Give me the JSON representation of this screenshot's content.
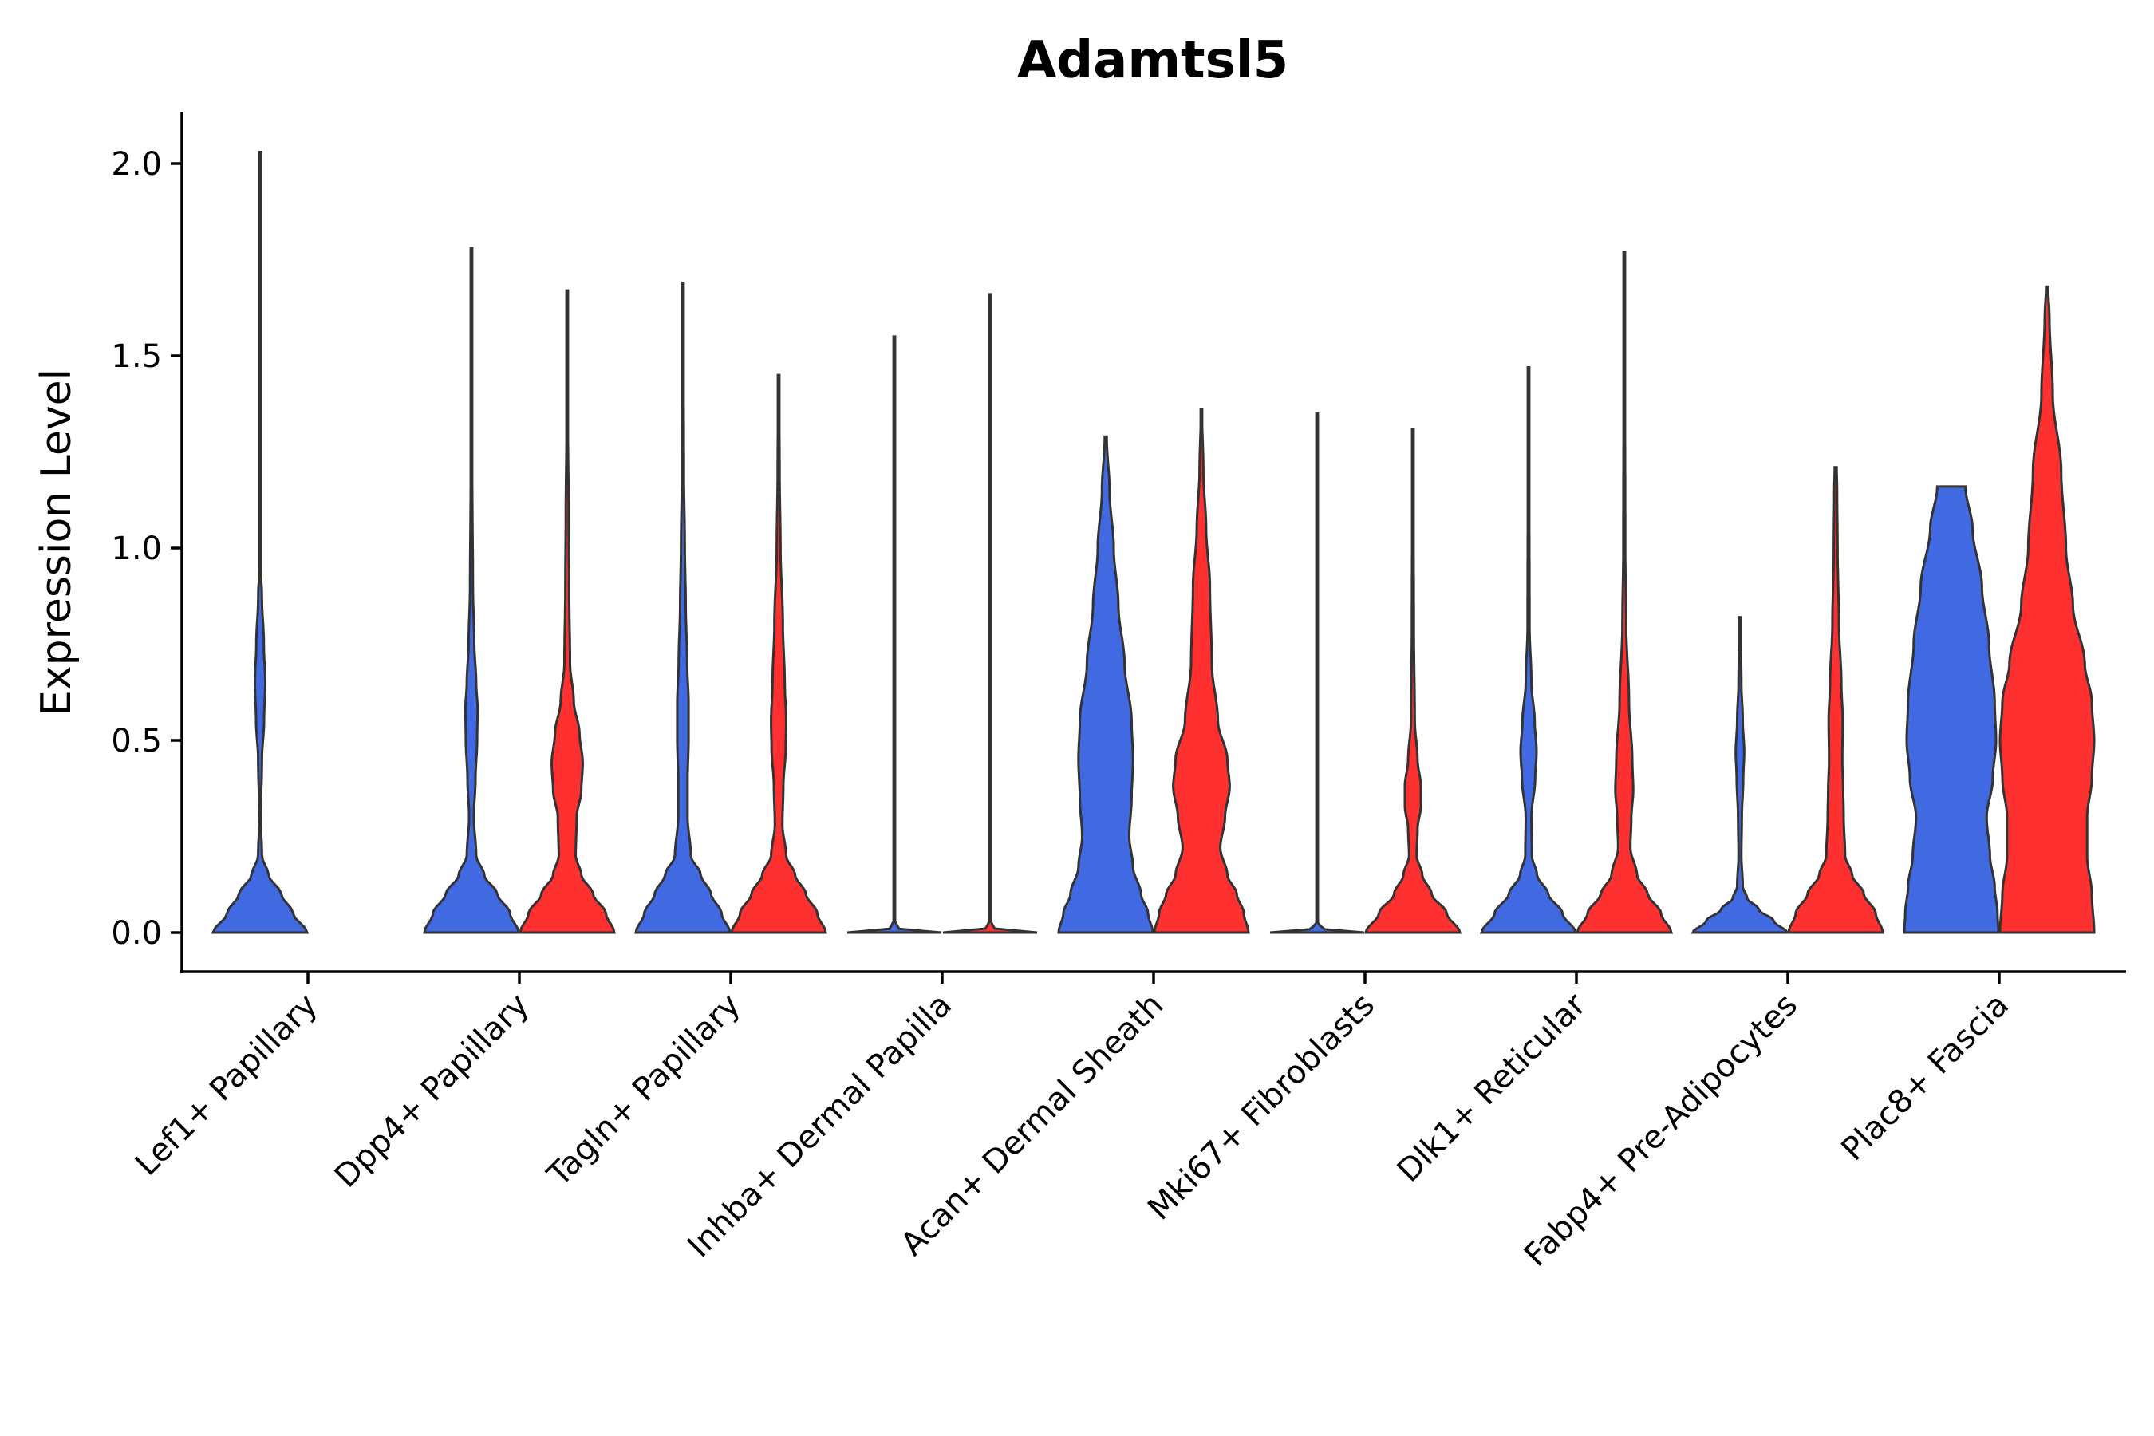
{
  "chart_data": {
    "type": "violin",
    "title": "Adamtsl5",
    "xlabel": "",
    "ylabel": "Expression Level",
    "ylim": [
      -0.1,
      2.13
    ],
    "yticks": [
      "0.0",
      "0.5",
      "1.0",
      "1.5",
      "2.0"
    ],
    "ytick_values": [
      0.0,
      0.5,
      1.0,
      1.5,
      2.0
    ],
    "groups": [
      "Blue",
      "Red"
    ],
    "group_colors": {
      "Blue": "#4169e1",
      "Red": "#ff3030"
    },
    "categories": [
      "Lef1+ Papillary",
      "Dpp4+ Papillary",
      "Tagln+ Papillary",
      "Inhba+ Dermal Papilla",
      "Acan+ Dermal Sheath",
      "Mki67+ Fibroblasts",
      "Dlk1+ Reticular",
      "Fabp4+ Pre-Adipocytes",
      "Plac8+ Fascia"
    ],
    "violins": [
      {
        "category": "Lef1+ Papillary",
        "group": "Blue",
        "max": 2.03,
        "profile": [
          [
            0.0,
            1.0
          ],
          [
            0.05,
            0.7
          ],
          [
            0.1,
            0.45
          ],
          [
            0.15,
            0.18
          ],
          [
            0.2,
            0.04
          ],
          [
            0.3,
            0.015
          ],
          [
            0.45,
            0.04
          ],
          [
            0.55,
            0.085
          ],
          [
            0.65,
            0.11
          ],
          [
            0.75,
            0.08
          ],
          [
            0.87,
            0.04
          ],
          [
            0.95,
            0.015
          ],
          [
            1.3,
            0.008
          ],
          [
            2.03,
            0.005
          ]
        ]
      },
      {
        "category": "Lef1+ Papillary",
        "group": "Red",
        "max": 0.0,
        "profile": []
      },
      {
        "category": "Dpp4+ Papillary",
        "group": "Blue",
        "max": 1.78,
        "profile": [
          [
            0.0,
            1.0
          ],
          [
            0.05,
            0.82
          ],
          [
            0.1,
            0.55
          ],
          [
            0.15,
            0.27
          ],
          [
            0.2,
            0.1
          ],
          [
            0.3,
            0.05
          ],
          [
            0.4,
            0.085
          ],
          [
            0.5,
            0.12
          ],
          [
            0.58,
            0.13
          ],
          [
            0.65,
            0.1
          ],
          [
            0.75,
            0.06
          ],
          [
            0.9,
            0.03
          ],
          [
            1.2,
            0.015
          ],
          [
            1.78,
            0.006
          ]
        ]
      },
      {
        "category": "Dpp4+ Papillary",
        "group": "Red",
        "max": 1.67,
        "profile": [
          [
            0.0,
            1.0
          ],
          [
            0.05,
            0.82
          ],
          [
            0.1,
            0.55
          ],
          [
            0.15,
            0.3
          ],
          [
            0.2,
            0.18
          ],
          [
            0.3,
            0.2
          ],
          [
            0.37,
            0.3
          ],
          [
            0.44,
            0.33
          ],
          [
            0.52,
            0.26
          ],
          [
            0.6,
            0.14
          ],
          [
            0.7,
            0.06
          ],
          [
            0.9,
            0.04
          ],
          [
            1.1,
            0.03
          ],
          [
            1.3,
            0.015
          ],
          [
            1.67,
            0.006
          ]
        ]
      },
      {
        "category": "Tagln+ Papillary",
        "group": "Blue",
        "max": 1.69,
        "profile": [
          [
            0.0,
            1.0
          ],
          [
            0.05,
            0.82
          ],
          [
            0.1,
            0.6
          ],
          [
            0.15,
            0.38
          ],
          [
            0.2,
            0.17
          ],
          [
            0.3,
            0.1
          ],
          [
            0.4,
            0.1
          ],
          [
            0.5,
            0.12
          ],
          [
            0.6,
            0.12
          ],
          [
            0.7,
            0.09
          ],
          [
            0.85,
            0.06
          ],
          [
            1.0,
            0.04
          ],
          [
            1.2,
            0.02
          ],
          [
            1.69,
            0.006
          ]
        ]
      },
      {
        "category": "Tagln+ Papillary",
        "group": "Red",
        "max": 1.45,
        "profile": [
          [
            0.0,
            1.0
          ],
          [
            0.05,
            0.82
          ],
          [
            0.1,
            0.58
          ],
          [
            0.15,
            0.35
          ],
          [
            0.2,
            0.16
          ],
          [
            0.28,
            0.08
          ],
          [
            0.38,
            0.1
          ],
          [
            0.48,
            0.15
          ],
          [
            0.55,
            0.16
          ],
          [
            0.65,
            0.13
          ],
          [
            0.8,
            0.09
          ],
          [
            1.0,
            0.04
          ],
          [
            1.2,
            0.02
          ],
          [
            1.45,
            0.006
          ]
        ]
      },
      {
        "category": "Inhba+ Dermal Papilla",
        "group": "Blue",
        "max": 1.55,
        "profile": [
          [
            0.0,
            1.0
          ],
          [
            0.01,
            0.1
          ],
          [
            0.03,
            0.006
          ],
          [
            1.55,
            0.006
          ]
        ]
      },
      {
        "category": "Inhba+ Dermal Papilla",
        "group": "Red",
        "max": 1.66,
        "profile": [
          [
            0.0,
            1.0
          ],
          [
            0.01,
            0.1
          ],
          [
            0.03,
            0.006
          ],
          [
            1.66,
            0.006
          ]
        ]
      },
      {
        "category": "Acan+ Dermal Sheath",
        "group": "Blue",
        "max": 1.29,
        "profile": [
          [
            0.0,
            1.0
          ],
          [
            0.05,
            0.9
          ],
          [
            0.1,
            0.75
          ],
          [
            0.17,
            0.58
          ],
          [
            0.25,
            0.5
          ],
          [
            0.35,
            0.55
          ],
          [
            0.45,
            0.58
          ],
          [
            0.55,
            0.55
          ],
          [
            0.7,
            0.4
          ],
          [
            0.85,
            0.27
          ],
          [
            1.0,
            0.17
          ],
          [
            1.15,
            0.08
          ],
          [
            1.29,
            0.02
          ]
        ]
      },
      {
        "category": "Acan+ Dermal Sheath",
        "group": "Red",
        "max": 1.36,
        "profile": [
          [
            0.0,
            1.0
          ],
          [
            0.05,
            0.9
          ],
          [
            0.1,
            0.75
          ],
          [
            0.15,
            0.55
          ],
          [
            0.22,
            0.4
          ],
          [
            0.3,
            0.5
          ],
          [
            0.38,
            0.6
          ],
          [
            0.45,
            0.55
          ],
          [
            0.55,
            0.35
          ],
          [
            0.7,
            0.22
          ],
          [
            0.9,
            0.18
          ],
          [
            1.05,
            0.1
          ],
          [
            1.2,
            0.04
          ],
          [
            1.36,
            0.01
          ]
        ]
      },
      {
        "category": "Mki67+ Fibroblasts",
        "group": "Blue",
        "max": 1.35,
        "profile": [
          [
            0.0,
            1.0
          ],
          [
            0.01,
            0.1
          ],
          [
            0.03,
            0.006
          ],
          [
            1.35,
            0.006
          ]
        ]
      },
      {
        "category": "Mki67+ Fibroblasts",
        "group": "Red",
        "max": 1.31,
        "profile": [
          [
            0.0,
            1.0
          ],
          [
            0.05,
            0.72
          ],
          [
            0.1,
            0.4
          ],
          [
            0.15,
            0.2
          ],
          [
            0.2,
            0.08
          ],
          [
            0.27,
            0.1
          ],
          [
            0.33,
            0.17
          ],
          [
            0.38,
            0.17
          ],
          [
            0.45,
            0.1
          ],
          [
            0.55,
            0.04
          ],
          [
            0.8,
            0.02
          ],
          [
            1.31,
            0.006
          ]
        ]
      },
      {
        "category": "Dlk1+ Reticular",
        "group": "Blue",
        "max": 1.47,
        "profile": [
          [
            0.0,
            1.0
          ],
          [
            0.05,
            0.72
          ],
          [
            0.1,
            0.42
          ],
          [
            0.15,
            0.18
          ],
          [
            0.2,
            0.07
          ],
          [
            0.3,
            0.06
          ],
          [
            0.4,
            0.14
          ],
          [
            0.47,
            0.17
          ],
          [
            0.55,
            0.13
          ],
          [
            0.65,
            0.06
          ],
          [
            0.8,
            0.02
          ],
          [
            1.47,
            0.006
          ]
        ]
      },
      {
        "category": "Dlk1+ Reticular",
        "group": "Red",
        "max": 1.77,
        "profile": [
          [
            0.0,
            1.0
          ],
          [
            0.05,
            0.78
          ],
          [
            0.1,
            0.5
          ],
          [
            0.15,
            0.27
          ],
          [
            0.22,
            0.13
          ],
          [
            0.3,
            0.15
          ],
          [
            0.37,
            0.19
          ],
          [
            0.45,
            0.17
          ],
          [
            0.6,
            0.1
          ],
          [
            0.8,
            0.04
          ],
          [
            1.0,
            0.02
          ],
          [
            1.77,
            0.006
          ]
        ]
      },
      {
        "category": "Fabp4+ Pre-Adipocytes",
        "group": "Blue",
        "max": 0.82,
        "profile": [
          [
            0.0,
            1.0
          ],
          [
            0.03,
            0.72
          ],
          [
            0.06,
            0.4
          ],
          [
            0.09,
            0.15
          ],
          [
            0.12,
            0.06
          ],
          [
            0.2,
            0.03
          ],
          [
            0.3,
            0.04
          ],
          [
            0.4,
            0.07
          ],
          [
            0.47,
            0.09
          ],
          [
            0.55,
            0.06
          ],
          [
            0.65,
            0.03
          ],
          [
            0.82,
            0.006
          ]
        ]
      },
      {
        "category": "Fabp4+ Pre-Adipocytes",
        "group": "Red",
        "max": 1.21,
        "profile": [
          [
            0.0,
            1.0
          ],
          [
            0.05,
            0.85
          ],
          [
            0.1,
            0.6
          ],
          [
            0.15,
            0.35
          ],
          [
            0.2,
            0.2
          ],
          [
            0.3,
            0.17
          ],
          [
            0.37,
            0.16
          ],
          [
            0.45,
            0.14
          ],
          [
            0.55,
            0.15
          ],
          [
            0.65,
            0.12
          ],
          [
            0.8,
            0.07
          ],
          [
            1.0,
            0.04
          ],
          [
            1.15,
            0.03
          ],
          [
            1.21,
            0.02
          ]
        ]
      },
      {
        "category": "Plac8+ Fascia",
        "group": "Blue",
        "max": 1.16,
        "profile": [
          [
            0.0,
            1.0
          ],
          [
            0.05,
            0.98
          ],
          [
            0.12,
            0.92
          ],
          [
            0.2,
            0.82
          ],
          [
            0.3,
            0.75
          ],
          [
            0.4,
            0.88
          ],
          [
            0.5,
            0.95
          ],
          [
            0.6,
            0.92
          ],
          [
            0.75,
            0.8
          ],
          [
            0.9,
            0.65
          ],
          [
            1.05,
            0.45
          ],
          [
            1.16,
            0.3
          ]
        ]
      },
      {
        "category": "Plac8+ Fascia",
        "group": "Red",
        "max": 1.68,
        "profile": [
          [
            0.0,
            1.0
          ],
          [
            0.1,
            0.95
          ],
          [
            0.2,
            0.85
          ],
          [
            0.3,
            0.85
          ],
          [
            0.4,
            0.95
          ],
          [
            0.5,
            1.0
          ],
          [
            0.6,
            0.95
          ],
          [
            0.7,
            0.8
          ],
          [
            0.85,
            0.55
          ],
          [
            1.0,
            0.4
          ],
          [
            1.2,
            0.3
          ],
          [
            1.4,
            0.12
          ],
          [
            1.6,
            0.05
          ],
          [
            1.68,
            0.02
          ]
        ]
      }
    ]
  }
}
